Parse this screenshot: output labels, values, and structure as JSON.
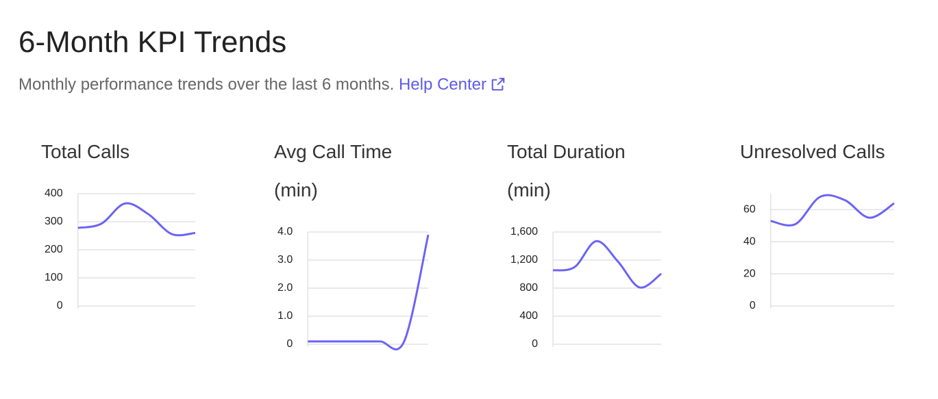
{
  "header": {
    "title": "6-Month KPI Trends",
    "subtitle": "Monthly performance trends over the last 6 months.",
    "link": "Help Center"
  },
  "chart_data": [
    {
      "type": "line",
      "title": "Total Calls",
      "values": [
        278,
        293,
        365,
        327,
        256,
        260
      ],
      "color": "#6b63f5",
      "ylim": [
        0,
        400
      ],
      "yticks": [
        0,
        100,
        200,
        300,
        400
      ],
      "grid": true
    },
    {
      "type": "line",
      "title": "Avg Call Time (min)",
      "values": [
        0.1,
        0.1,
        0.1,
        0.1,
        0.1,
        3.9
      ],
      "color": "#6b63f5",
      "ylim": [
        0,
        4
      ],
      "yticks": [
        0,
        {
          "value": 1,
          "label": "1.0"
        },
        {
          "value": 2,
          "label": "2.0"
        },
        {
          "value": 3,
          "label": "3.0"
        },
        {
          "value": 4,
          "label": "4.0"
        }
      ],
      "grid": true
    },
    {
      "type": "line",
      "title": "Total Duration (min)",
      "values": [
        1054,
        1100,
        1470,
        1180,
        810,
        1005
      ],
      "color": "#6b63f5",
      "ylim": [
        0,
        1600
      ],
      "yticks": [
        0,
        400,
        800,
        {
          "value": 1200,
          "label": "1,200"
        },
        {
          "value": 1600,
          "label": "1,600"
        }
      ],
      "grid": true
    },
    {
      "type": "line",
      "title": "Unresolved Calls",
      "values": [
        53,
        51,
        68,
        66,
        55,
        64
      ],
      "color": "#6b63f5",
      "ylim": [
        0,
        70
      ],
      "yticks": [
        0,
        20,
        40,
        60
      ],
      "grid": true
    }
  ]
}
